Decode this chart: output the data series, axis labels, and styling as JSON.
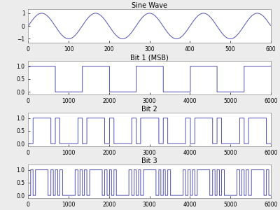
{
  "title_sine": "Sine Wave",
  "title_bit1": "Bit 1 (MSB)",
  "title_bit2": "Bit 2",
  "title_bit3": "Bit 3",
  "sine_samples": 600,
  "sine_freq_cycles": 4.5,
  "n_bits": 3,
  "bit_samples": 6000,
  "line_color": "#5050b0",
  "fig_bg_color": "#ececec",
  "ax_bg_color": "#ffffff",
  "sine_xlim": [
    0,
    600
  ],
  "bit_xlim": [
    0,
    6000
  ],
  "sine_ylim": [
    -1.3,
    1.3
  ],
  "bit_ylim": [
    -0.1,
    1.2
  ],
  "sine_yticks": [
    -1,
    0,
    1
  ],
  "bit_yticks": [
    0,
    0.5,
    1
  ],
  "sine_xticks": [
    0,
    100,
    200,
    300,
    400,
    500,
    600
  ],
  "bit_xticks": [
    0,
    1000,
    2000,
    3000,
    4000,
    5000,
    6000
  ],
  "title_fontsize": 7,
  "tick_fontsize": 5.5,
  "line_width": 0.7,
  "figsize": [
    4.0,
    3.0
  ],
  "dpi": 100
}
